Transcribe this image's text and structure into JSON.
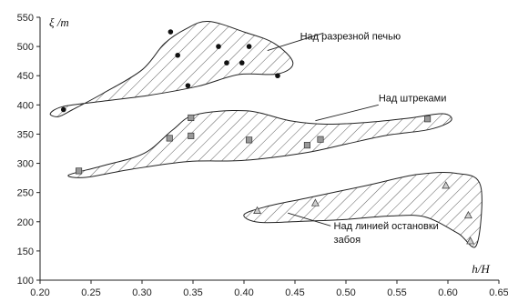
{
  "chart_data": {
    "type": "scatter",
    "title": "",
    "xlabel": "h/H",
    "ylabel": "ξ /m",
    "xlim": [
      0.2,
      0.65
    ],
    "ylim": [
      100,
      550
    ],
    "x_ticks": [
      "0.20",
      "0.25",
      "0.30",
      "0.35",
      "0.40",
      "0.45",
      "0.50",
      "0.55",
      "0.60",
      "0.65"
    ],
    "y_ticks": [
      "100",
      "150",
      "200",
      "250",
      "300",
      "350",
      "400",
      "450",
      "500",
      "550"
    ],
    "grid": false,
    "series": [
      {
        "name": "Над разрезной печью",
        "marker": "circle",
        "color": "#111111",
        "points": [
          [
            0.223,
            392
          ],
          [
            0.328,
            525
          ],
          [
            0.335,
            485
          ],
          [
            0.345,
            433
          ],
          [
            0.375,
            500
          ],
          [
            0.383,
            472
          ],
          [
            0.398,
            472
          ],
          [
            0.405,
            500
          ],
          [
            0.433,
            450
          ]
        ],
        "region": [
          [
            0.218,
            380
          ],
          [
            0.232,
            392
          ],
          [
            0.262,
            420
          ],
          [
            0.3,
            460
          ],
          [
            0.322,
            505
          ],
          [
            0.343,
            530
          ],
          [
            0.365,
            543
          ],
          [
            0.4,
            525
          ],
          [
            0.43,
            505
          ],
          [
            0.448,
            472
          ],
          [
            0.433,
            453
          ],
          [
            0.395,
            452
          ],
          [
            0.355,
            432
          ],
          [
            0.305,
            416
          ],
          [
            0.255,
            405
          ],
          [
            0.222,
            397
          ],
          [
            0.21,
            385
          ]
        ]
      },
      {
        "name": "Над штреками",
        "marker": "square",
        "color": "#999999",
        "points": [
          [
            0.238,
            287
          ],
          [
            0.327,
            343
          ],
          [
            0.348,
            378
          ],
          [
            0.348,
            347
          ],
          [
            0.405,
            340
          ],
          [
            0.462,
            331
          ],
          [
            0.475,
            341
          ],
          [
            0.58,
            376
          ]
        ],
        "region": [
          [
            0.228,
            280
          ],
          [
            0.262,
            296
          ],
          [
            0.302,
            317
          ],
          [
            0.33,
            357
          ],
          [
            0.352,
            383
          ],
          [
            0.402,
            390
          ],
          [
            0.445,
            373
          ],
          [
            0.48,
            367
          ],
          [
            0.52,
            370
          ],
          [
            0.56,
            377
          ],
          [
            0.595,
            385
          ],
          [
            0.603,
            373
          ],
          [
            0.582,
            358
          ],
          [
            0.54,
            348
          ],
          [
            0.5,
            333
          ],
          [
            0.46,
            318
          ],
          [
            0.4,
            305
          ],
          [
            0.345,
            303
          ],
          [
            0.29,
            290
          ],
          [
            0.245,
            276
          ]
        ]
      },
      {
        "name": "Над линией остановки забоя",
        "marker": "triangle",
        "color": "#888888",
        "points": [
          [
            0.413,
            219
          ],
          [
            0.47,
            232
          ],
          [
            0.598,
            262
          ],
          [
            0.62,
            211
          ],
          [
            0.622,
            167
          ]
        ],
        "region": [
          [
            0.4,
            212
          ],
          [
            0.422,
            226
          ],
          [
            0.46,
            240
          ],
          [
            0.52,
            262
          ],
          [
            0.57,
            281
          ],
          [
            0.608,
            283
          ],
          [
            0.632,
            262
          ],
          [
            0.628,
            160
          ],
          [
            0.61,
            180
          ],
          [
            0.578,
            208
          ],
          [
            0.545,
            210
          ],
          [
            0.5,
            204
          ],
          [
            0.46,
            201
          ],
          [
            0.415,
            199
          ]
        ]
      }
    ],
    "annotations": [
      {
        "text": "Над разрезной печью",
        "anchor": [
          0.455,
          512
        ],
        "pointer_from": [
          0.478,
          523
        ],
        "pointer_to": [
          0.423,
          493
        ]
      },
      {
        "text": "Над штреками",
        "anchor": [
          0.532,
          406
        ],
        "pointer_from": [
          0.532,
          400
        ],
        "pointer_to": [
          0.47,
          373
        ]
      },
      {
        "text": "Над линией остановки забоя",
        "lines": [
          "Над линией остановки",
          "забоя"
        ],
        "anchor": [
          0.488,
          187
        ],
        "pointer_from": [
          0.485,
          193
        ],
        "pointer_to": [
          0.443,
          215
        ]
      }
    ]
  }
}
